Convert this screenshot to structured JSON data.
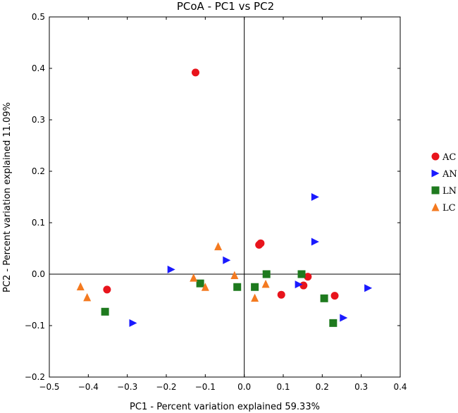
{
  "chart_data": {
    "type": "scatter",
    "title": "PCoA - PC1 vs PC2",
    "xlabel": "PC1 - Percent variation explained 59.33%",
    "ylabel": "PC2 - Percent variation explained 11.09%",
    "xlim": [
      -0.5,
      0.4
    ],
    "ylim": [
      -0.2,
      0.5
    ],
    "xticks": [
      -0.5,
      -0.4,
      -0.3,
      -0.2,
      -0.1,
      0.0,
      0.1,
      0.2,
      0.3,
      0.4
    ],
    "xtick_labels": [
      "−0.5",
      "−0.4",
      "−0.3",
      "−0.2",
      "−0.1",
      "0.0",
      "0.1",
      "0.2",
      "0.3",
      "0.4"
    ],
    "yticks": [
      -0.2,
      -0.1,
      0.0,
      0.1,
      0.2,
      0.3,
      0.4,
      0.5
    ],
    "ytick_labels": [
      "−0.2",
      "−0.1",
      "0.0",
      "0.1",
      "0.2",
      "0.3",
      "0.4",
      "0.5"
    ],
    "zero_lines": true,
    "legend_position": "right",
    "series": [
      {
        "name": "AC",
        "marker": "circle",
        "color": "#e8141c",
        "points": [
          [
            -0.125,
            0.392
          ],
          [
            -0.352,
            -0.03
          ],
          [
            0.038,
            0.057
          ],
          [
            0.042,
            0.06
          ],
          [
            0.095,
            -0.04
          ],
          [
            0.152,
            -0.022
          ],
          [
            0.163,
            -0.005
          ],
          [
            0.232,
            -0.042
          ]
        ]
      },
      {
        "name": "AN",
        "marker": "triangle-right",
        "color": "#1a1aff",
        "points": [
          [
            -0.285,
            -0.095
          ],
          [
            -0.187,
            0.009
          ],
          [
            -0.045,
            0.027
          ],
          [
            0.14,
            -0.02
          ],
          [
            0.182,
            0.15
          ],
          [
            0.182,
            0.063
          ],
          [
            0.255,
            -0.085
          ],
          [
            0.318,
            -0.027
          ]
        ]
      },
      {
        "name": "LN",
        "marker": "square",
        "color": "#1e7a1e",
        "points": [
          [
            -0.357,
            -0.073
          ],
          [
            -0.113,
            -0.018
          ],
          [
            -0.018,
            -0.025
          ],
          [
            0.027,
            -0.025
          ],
          [
            0.057,
            0.0
          ],
          [
            0.147,
            0.0
          ],
          [
            0.205,
            -0.047
          ],
          [
            0.228,
            -0.095
          ]
        ]
      },
      {
        "name": "LC",
        "marker": "triangle-up",
        "color": "#f47a20",
        "points": [
          [
            -0.42,
            -0.024
          ],
          [
            -0.403,
            -0.045
          ],
          [
            -0.13,
            -0.007
          ],
          [
            -0.1,
            -0.025
          ],
          [
            -0.067,
            0.054
          ],
          [
            -0.025,
            -0.002
          ],
          [
            0.027,
            -0.046
          ],
          [
            0.055,
            -0.019
          ]
        ]
      }
    ]
  }
}
